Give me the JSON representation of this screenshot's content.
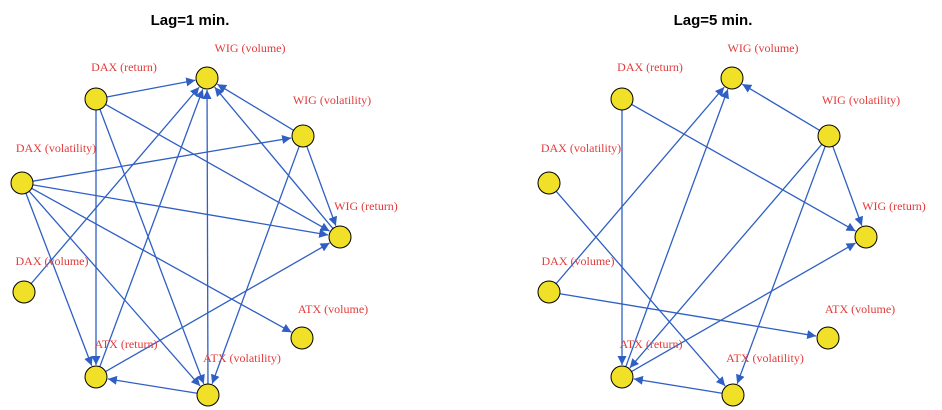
{
  "colors": {
    "node_fill": "#f0e028",
    "edge": "#2f5fc4",
    "label": "#e23b3b",
    "title": "#000000"
  },
  "panels": [
    {
      "title": "Lag=1 min.",
      "nodes": [
        {
          "id": "wig_volume",
          "label": "WIG (volume)"
        },
        {
          "id": "wig_volatility",
          "label": "WIG (volatility)"
        },
        {
          "id": "wig_return",
          "label": "WIG (return)"
        },
        {
          "id": "atx_volume",
          "label": "ATX (volume)"
        },
        {
          "id": "atx_volatility",
          "label": "ATX (volatility)"
        },
        {
          "id": "atx_return",
          "label": "ATX (return)"
        },
        {
          "id": "dax_volume",
          "label": "DAX (volume)"
        },
        {
          "id": "dax_volatility",
          "label": "DAX (volatility)"
        },
        {
          "id": "dax_return",
          "label": "DAX (return)"
        }
      ],
      "edges": [
        {
          "from": "dax_return",
          "to": "wig_volume"
        },
        {
          "from": "dax_return",
          "to": "atx_return"
        },
        {
          "from": "dax_return",
          "to": "wig_return"
        },
        {
          "from": "dax_return",
          "to": "atx_volatility"
        },
        {
          "from": "dax_volatility",
          "to": "wig_volatility"
        },
        {
          "from": "dax_volatility",
          "to": "wig_return"
        },
        {
          "from": "dax_volatility",
          "to": "atx_volume"
        },
        {
          "from": "dax_volatility",
          "to": "atx_return"
        },
        {
          "from": "dax_volatility",
          "to": "atx_volatility"
        },
        {
          "from": "dax_volume",
          "to": "wig_volume"
        },
        {
          "from": "wig_volatility",
          "to": "wig_volume"
        },
        {
          "from": "wig_volatility",
          "to": "wig_return"
        },
        {
          "from": "wig_volatility",
          "to": "atx_volatility"
        },
        {
          "from": "wig_return",
          "to": "wig_volume"
        },
        {
          "from": "atx_return",
          "to": "wig_volume"
        },
        {
          "from": "atx_return",
          "to": "wig_return"
        },
        {
          "from": "atx_volatility",
          "to": "wig_volume"
        },
        {
          "from": "atx_volatility",
          "to": "atx_return"
        }
      ]
    },
    {
      "title": "Lag=5 min.",
      "nodes": [
        {
          "id": "wig_volume",
          "label": "WIG (volume)"
        },
        {
          "id": "wig_volatility",
          "label": "WIG (volatility)"
        },
        {
          "id": "wig_return",
          "label": "WIG (return)"
        },
        {
          "id": "atx_volume",
          "label": "ATX (volume)"
        },
        {
          "id": "atx_volatility",
          "label": "ATX (volatility)"
        },
        {
          "id": "atx_return",
          "label": "ATX (return)"
        },
        {
          "id": "dax_volume",
          "label": "DAX (volume)"
        },
        {
          "id": "dax_volatility",
          "label": "DAX (volatility)"
        },
        {
          "id": "dax_return",
          "label": "DAX (return)"
        }
      ],
      "edges": [
        {
          "from": "dax_return",
          "to": "atx_return"
        },
        {
          "from": "dax_return",
          "to": "wig_return"
        },
        {
          "from": "dax_volatility",
          "to": "atx_volatility"
        },
        {
          "from": "dax_volume",
          "to": "wig_volume"
        },
        {
          "from": "dax_volume",
          "to": "atx_volume"
        },
        {
          "from": "wig_volatility",
          "to": "wig_volume"
        },
        {
          "from": "wig_volatility",
          "to": "wig_return"
        },
        {
          "from": "wig_volatility",
          "to": "atx_return"
        },
        {
          "from": "wig_volatility",
          "to": "atx_volatility"
        },
        {
          "from": "atx_return",
          "to": "wig_volume"
        },
        {
          "from": "atx_return",
          "to": "wig_return"
        },
        {
          "from": "atx_volatility",
          "to": "atx_return"
        }
      ]
    }
  ]
}
